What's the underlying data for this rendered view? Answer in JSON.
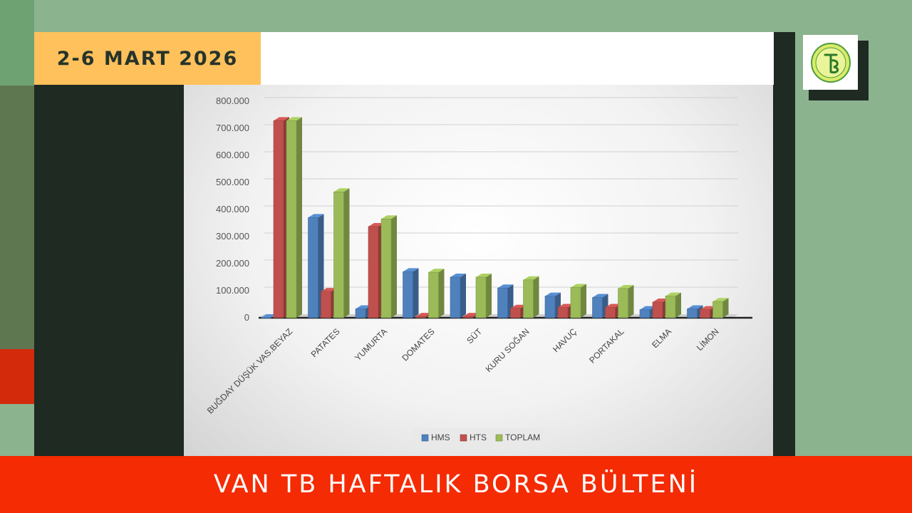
{
  "header": {
    "date": "2-6 MART 2026"
  },
  "footer": {
    "title": "VAN TB HAFTALIK BORSA BÜLTENİ"
  },
  "colors": {
    "hms": "#4f81bd",
    "hts": "#c0504d",
    "toplam": "#9bbb59",
    "footer_bg": "#f42b03",
    "date_bg": "#fec15b"
  },
  "logo": {
    "icon": "van-tb-logo-icon"
  },
  "chart_data": {
    "type": "bar",
    "title": "",
    "xlabel": "",
    "ylabel": "",
    "ylim": [
      0,
      800000
    ],
    "y_ticks": [
      "0",
      "100.000",
      "200.000",
      "300.000",
      "400.000",
      "500.000",
      "600.000",
      "700.000",
      "800.000"
    ],
    "categories": [
      "BUĞDAY DÜŞÜK VAS.BEYAZ",
      "PATATES",
      "YUMURTA",
      "DOMATES",
      "SÜT",
      "KURU SOĞAN",
      "HAVUÇ",
      "PORTAKAL",
      "ELMA",
      "LİMON"
    ],
    "series": [
      {
        "name": "HMS",
        "values": [
          0,
          370000,
          33000,
          170000,
          150000,
          110000,
          80000,
          75000,
          30000,
          33000
        ]
      },
      {
        "name": "HTS",
        "values": [
          728000,
          97000,
          337000,
          5000,
          5000,
          35000,
          38000,
          38000,
          58000,
          30000
        ]
      },
      {
        "name": "TOPLAM",
        "values": [
          728000,
          465000,
          365000,
          168000,
          150000,
          140000,
          112000,
          108000,
          80000,
          60000
        ]
      }
    ],
    "grid": true,
    "legend": "bottom"
  }
}
